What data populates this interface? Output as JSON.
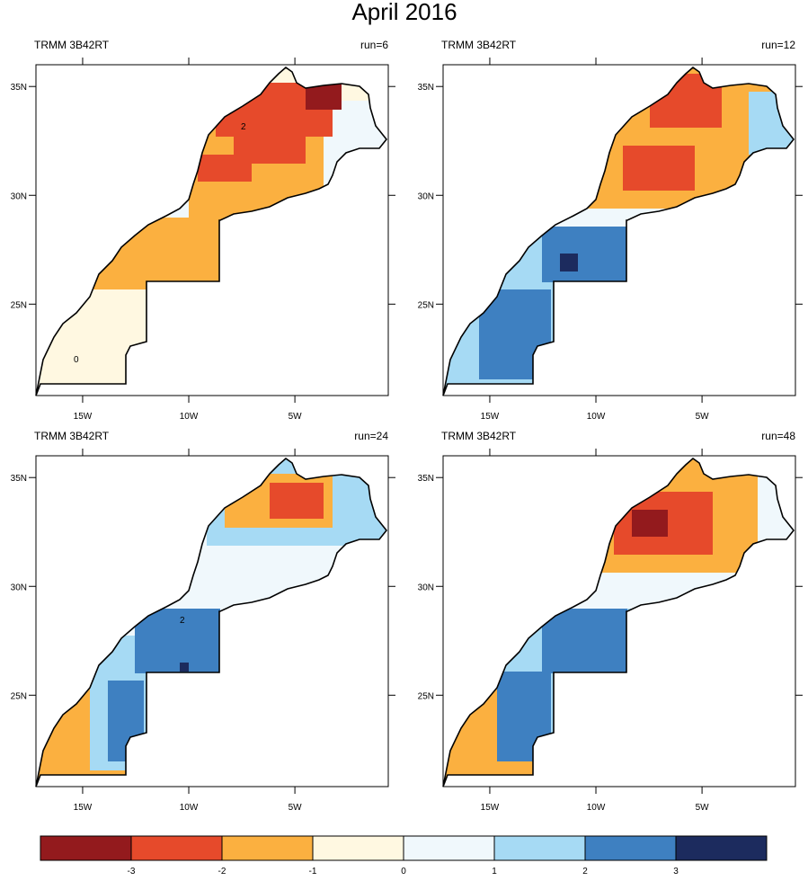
{
  "title": "April 2016",
  "map": {
    "lonlim": [
      -17.2,
      -0.6
    ],
    "latlim": [
      20.8,
      36.0
    ],
    "lat_ticks": [
      {
        "value": 35,
        "label": "35N"
      },
      {
        "value": 30,
        "label": "30N"
      },
      {
        "value": 25,
        "label": "25N"
      }
    ],
    "lon_ticks": [
      {
        "value": -15,
        "label": "15W"
      },
      {
        "value": -10,
        "label": "10W"
      },
      {
        "value": -5,
        "label": "5W"
      }
    ]
  },
  "panels": [
    {
      "left_label": "TRMM 3B42RT",
      "right_label": "run=6",
      "contour_labels": [
        "2",
        "0"
      ]
    },
    {
      "left_label": "TRMM 3B42RT",
      "right_label": "run=12",
      "contour_labels": []
    },
    {
      "left_label": "TRMM 3B42RT",
      "right_label": "run=24",
      "contour_labels": [
        "2"
      ]
    },
    {
      "left_label": "TRMM 3B42RT",
      "right_label": "run=48",
      "contour_labels": []
    }
  ],
  "colorbar": {
    "colors": [
      "#931a1d",
      "#e64a2b",
      "#fbb040",
      "#fff8e1",
      "#f0f8fc",
      "#a6daf4",
      "#3e80c1",
      "#1c2b5e"
    ],
    "labels": [
      -3,
      -2,
      -1,
      0,
      1,
      2,
      3
    ]
  }
}
